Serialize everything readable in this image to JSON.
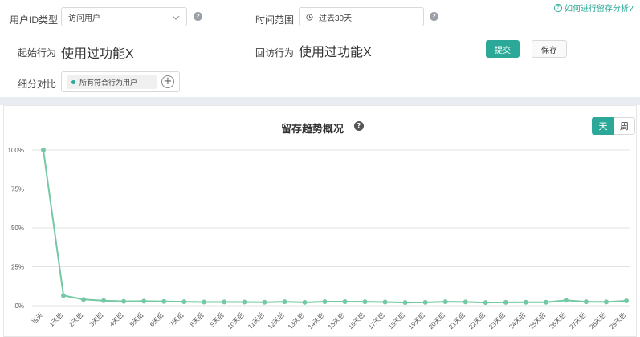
{
  "help_link": "如何进行留存分析?",
  "filters": {
    "user_id_type_label": "用户ID类型",
    "user_id_type_value": "访问用户",
    "time_range_label": "时间范围",
    "time_range_value": "过去30天",
    "start_action_label": "起始行为",
    "start_action_value": "使用过功能X",
    "return_action_label": "回访行为",
    "return_action_value": "使用过功能X",
    "segment_label": "细分对比",
    "segment_chip": "所有符合行为用户",
    "submit_label": "提交",
    "save_label": "保存"
  },
  "chart_panel": {
    "title": "留存趋势概况",
    "toggle_day": "天",
    "toggle_week": "周"
  },
  "colors": {
    "accent": "#2ba897",
    "line": "#74c9a4",
    "grid": "#e3e3e3"
  },
  "chart_data": {
    "type": "line",
    "title": "留存趋势概况",
    "y_ticks": [
      "100%",
      "75%",
      "50%",
      "25%",
      "0%"
    ],
    "ylim": [
      0,
      100
    ],
    "categories": [
      "当天",
      "1天后",
      "2天后",
      "3天后",
      "4天后",
      "5天后",
      "6天后",
      "7天后",
      "8天后",
      "9天后",
      "10天后",
      "11天后",
      "12天后",
      "13天后",
      "14天后",
      "15天后",
      "16天后",
      "17天后",
      "18天后",
      "19天后",
      "20天后",
      "21天后",
      "22天后",
      "23天后",
      "24天后",
      "25天后",
      "26天后",
      "27天后",
      "28天后",
      "29天后"
    ],
    "series": [
      {
        "values": [
          100,
          6.5,
          4,
          3.2,
          2.8,
          2.9,
          2.7,
          2.5,
          2.3,
          2.4,
          2.3,
          2.2,
          2.5,
          2.1,
          2.6,
          2.6,
          2.5,
          2.3,
          2.0,
          2.1,
          2.5,
          2.4,
          2.0,
          2.1,
          2.2,
          2.2,
          3.4,
          2.5,
          2.4,
          3.1
        ]
      }
    ]
  }
}
